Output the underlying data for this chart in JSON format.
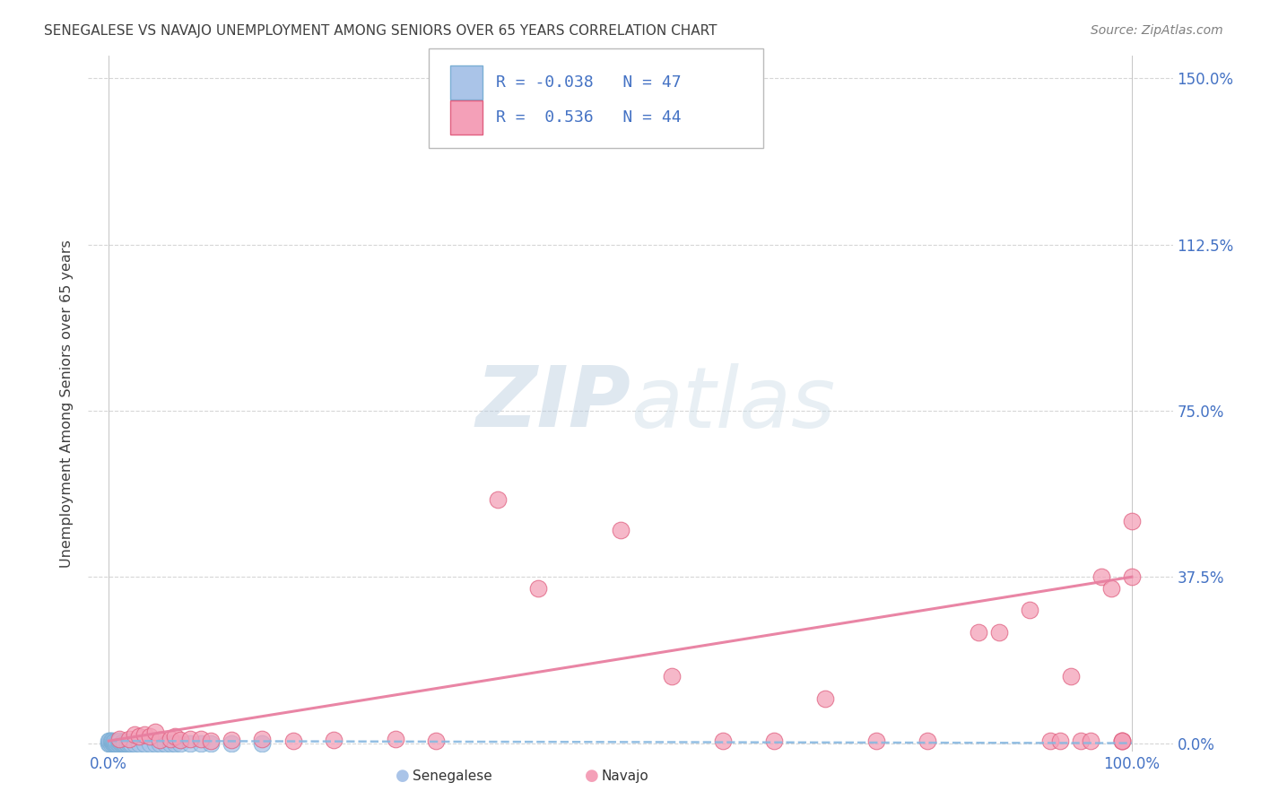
{
  "title": "SENEGALESE VS NAVAJO UNEMPLOYMENT AMONG SENIORS OVER 65 YEARS CORRELATION CHART",
  "source": "Source: ZipAtlas.com",
  "ylabel_label": "Unemployment Among Seniors over 65 years",
  "senegalese_color": "#aac4e8",
  "navajo_color": "#f4a0b8",
  "senegalese_edge_color": "#7bafd4",
  "navajo_edge_color": "#e06080",
  "senegalese_line_color": "#88b8e0",
  "navajo_line_color": "#e87fa0",
  "watermark_color": "#ccddf0",
  "background_color": "#ffffff",
  "grid_color": "#cccccc",
  "tick_label_color": "#4472c4",
  "title_color": "#404040",
  "source_color": "#808080",
  "senegalese_R": -0.038,
  "navajo_R": 0.536,
  "senegalese_N": 47,
  "navajo_N": 44,
  "ylim_max": 1.5,
  "xlim_max": 1.0,
  "ytick_vals": [
    0.0,
    0.375,
    0.75,
    1.125,
    1.5
  ],
  "ytick_labels": [
    "0.0%",
    "37.5%",
    "75.0%",
    "112.5%",
    "150.0%"
  ],
  "xtick_vals": [
    0.0,
    1.0
  ],
  "xtick_labels": [
    "0.0%",
    "100.0%"
  ],
  "navajo_x": [
    0.01,
    0.02,
    0.025,
    0.03,
    0.035,
    0.04,
    0.045,
    0.05,
    0.06,
    0.065,
    0.07,
    0.08,
    0.09,
    0.1,
    0.12,
    0.15,
    0.18,
    0.22,
    0.28,
    0.32,
    0.38,
    0.42,
    0.5,
    0.55,
    0.6,
    0.65,
    0.7,
    0.75,
    0.8,
    0.85,
    0.87,
    0.9,
    0.92,
    0.93,
    0.94,
    0.95,
    0.96,
    0.97,
    0.98,
    0.99,
    0.99,
    0.99,
    1.0,
    1.0
  ],
  "navajo_y": [
    0.01,
    0.01,
    0.02,
    0.015,
    0.02,
    0.015,
    0.025,
    0.008,
    0.01,
    0.015,
    0.008,
    0.01,
    0.01,
    0.005,
    0.008,
    0.01,
    0.005,
    0.008,
    0.01,
    0.005,
    0.55,
    0.35,
    0.48,
    0.15,
    0.005,
    0.005,
    0.1,
    0.005,
    0.005,
    0.25,
    0.25,
    0.3,
    0.005,
    0.005,
    0.15,
    0.005,
    0.005,
    0.375,
    0.35,
    0.005,
    0.005,
    0.005,
    0.5,
    0.375
  ],
  "senegalese_x": [
    0.0,
    0.0,
    0.001,
    0.001,
    0.002,
    0.002,
    0.003,
    0.003,
    0.004,
    0.004,
    0.005,
    0.005,
    0.006,
    0.006,
    0.007,
    0.008,
    0.008,
    0.009,
    0.01,
    0.01,
    0.01,
    0.012,
    0.013,
    0.014,
    0.015,
    0.015,
    0.016,
    0.017,
    0.018,
    0.02,
    0.02,
    0.022,
    0.025,
    0.03,
    0.035,
    0.04,
    0.045,
    0.05,
    0.055,
    0.06,
    0.065,
    0.07,
    0.08,
    0.09,
    0.1,
    0.12,
    0.15
  ],
  "senegalese_y": [
    0.0,
    0.005,
    0.0,
    0.005,
    0.0,
    0.005,
    0.003,
    0.005,
    0.0,
    0.004,
    0.0,
    0.003,
    0.0,
    0.003,
    0.0,
    0.0,
    0.003,
    0.0,
    0.0,
    0.003,
    0.005,
    0.0,
    0.0,
    0.0,
    0.0,
    0.003,
    0.0,
    0.0,
    0.0,
    0.0,
    0.003,
    0.0,
    0.0,
    0.0,
    0.0,
    0.0,
    0.0,
    0.0,
    0.0,
    0.0,
    0.0,
    0.0,
    0.0,
    0.0,
    0.0,
    0.0,
    0.0
  ],
  "nav_trend_start_y": 0.005,
  "nav_trend_end_y": 0.375,
  "sen_trend_start_y": 0.005,
  "sen_trend_end_y": 0.0
}
